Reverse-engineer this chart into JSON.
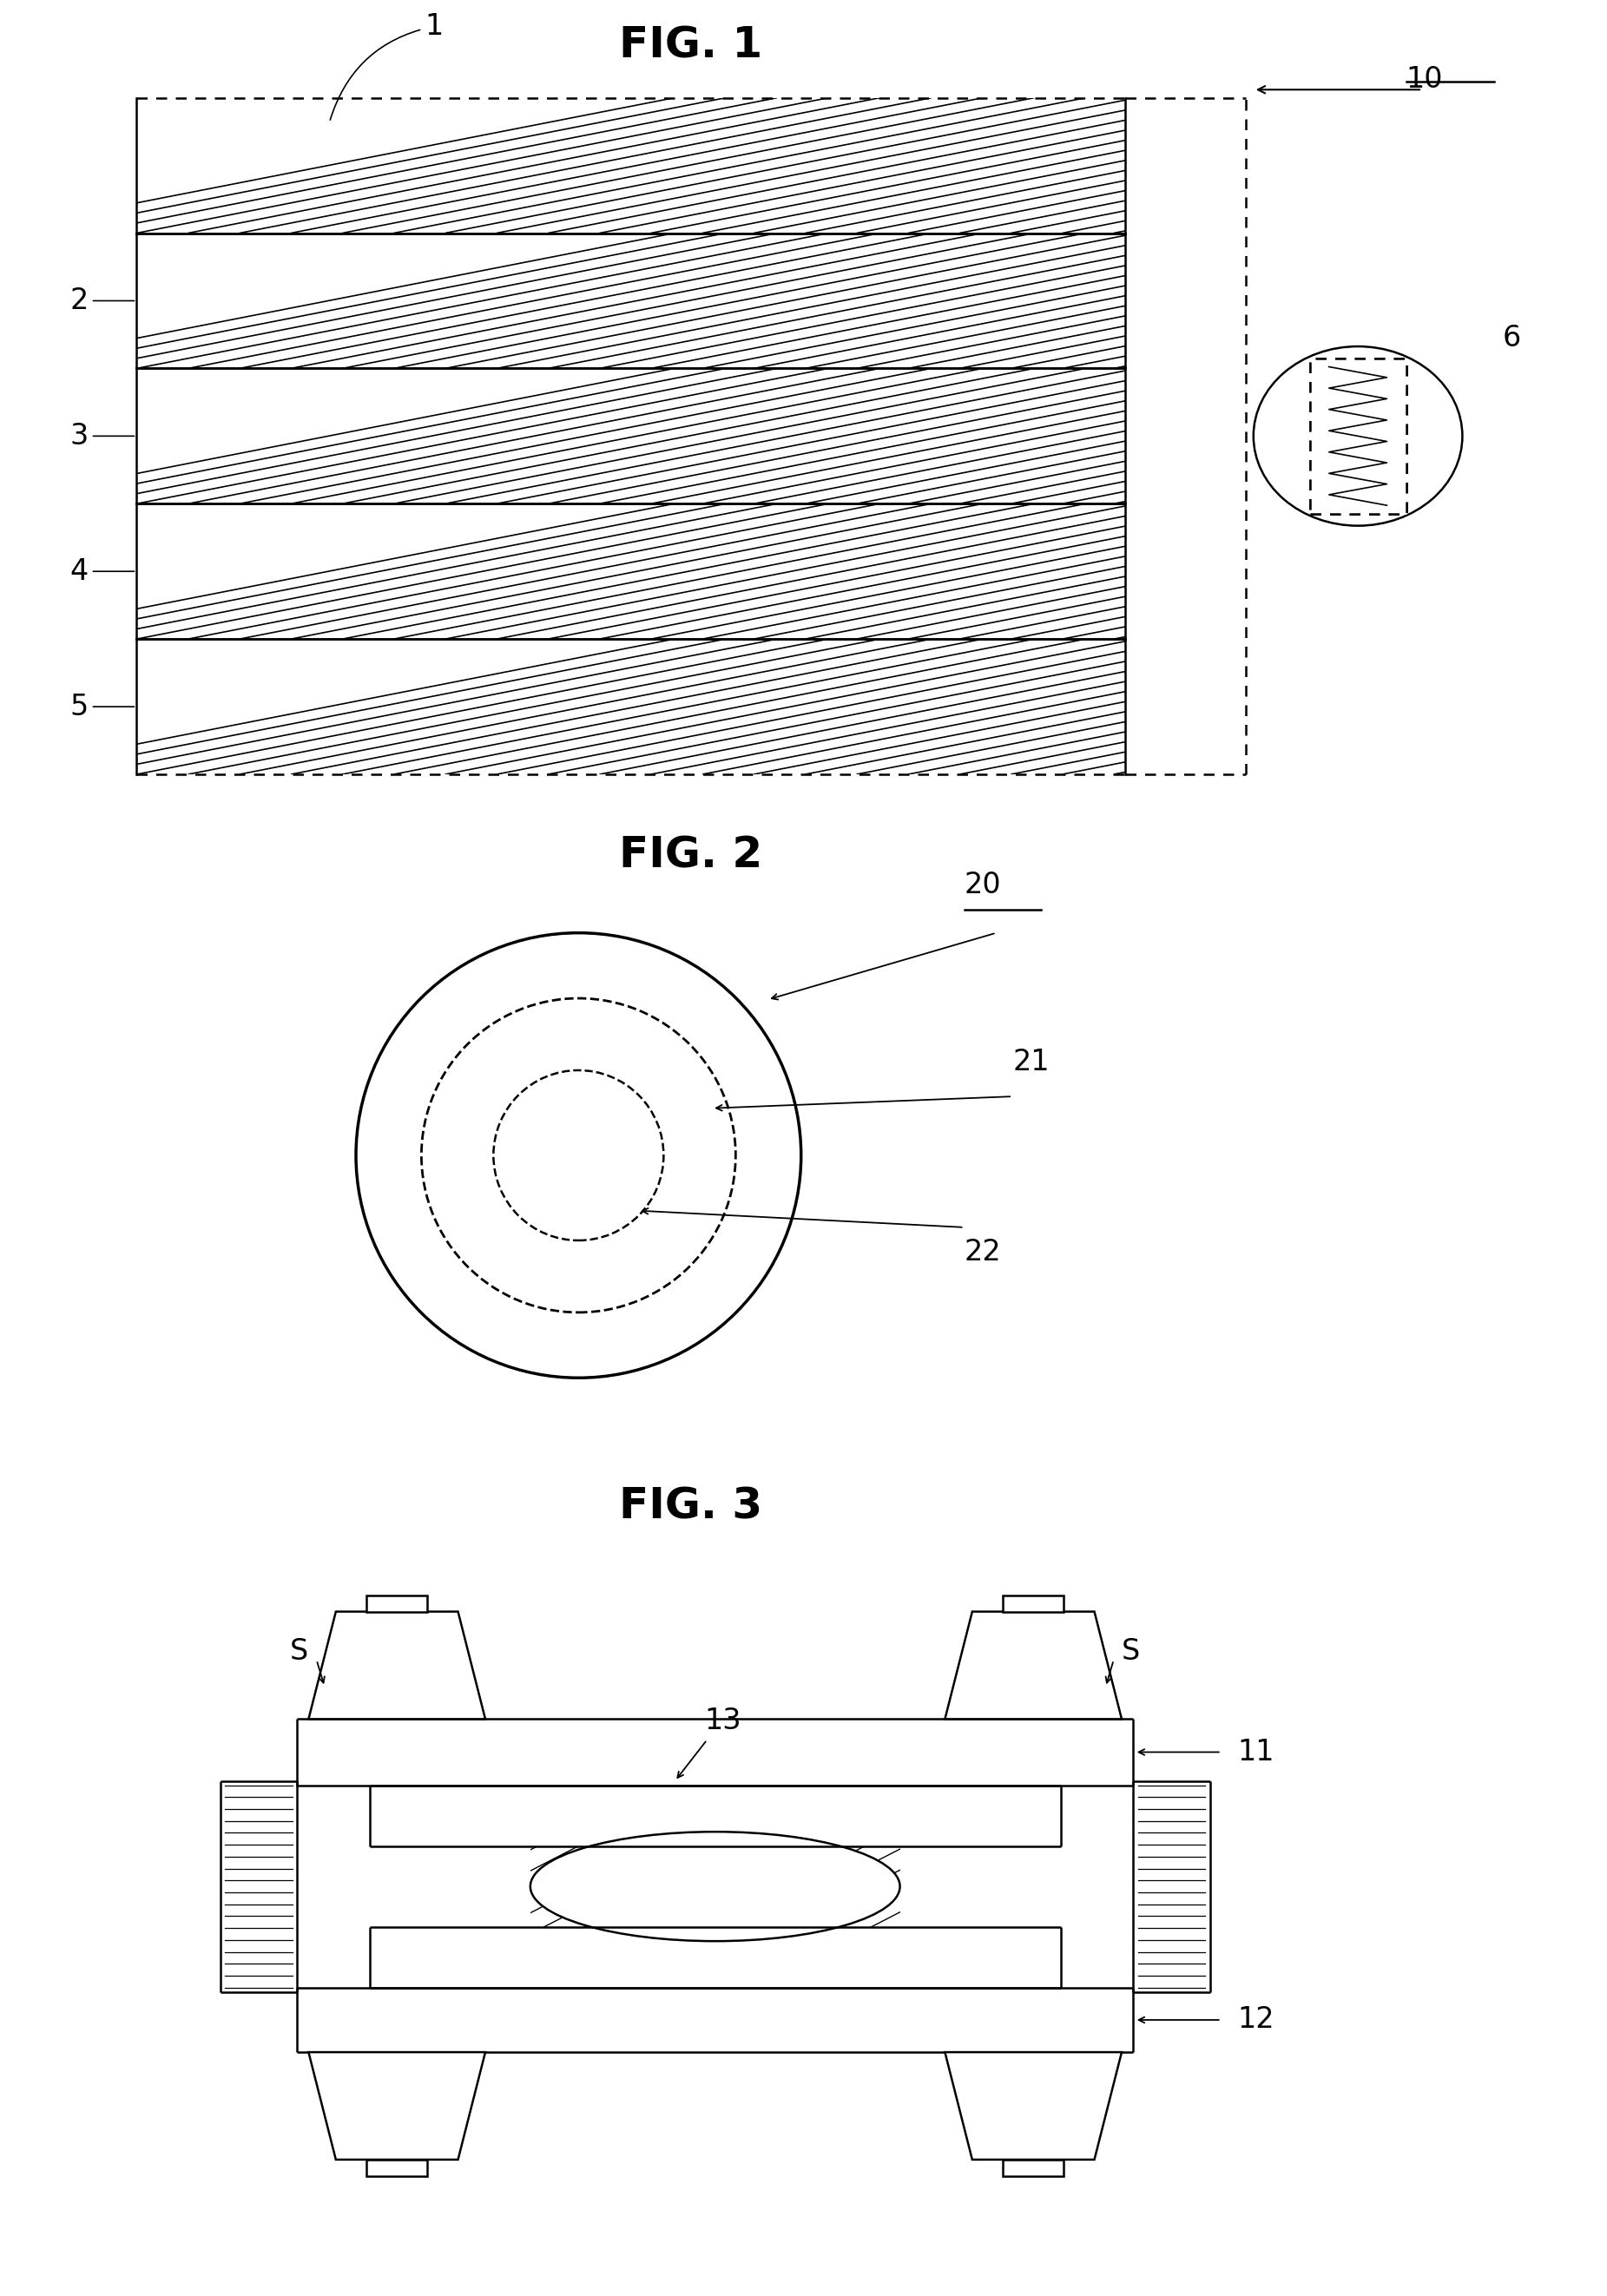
{
  "bg_color": "#ffffff",
  "lw_main": 1.8,
  "lw_thin": 1.0,
  "fontsize_title": 36,
  "fontsize_label": 24,
  "fig1_title": "FIG. 1",
  "fig2_title": "FIG. 2",
  "fig3_title": "FIG. 3"
}
